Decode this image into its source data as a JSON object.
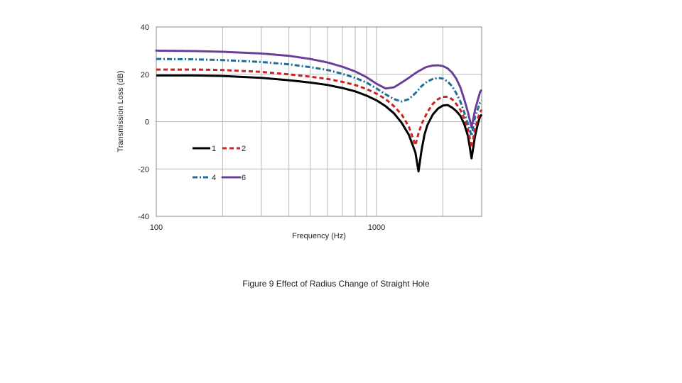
{
  "caption": "Figure 9 Effect of Radius Change of Straight Hole",
  "chart_data": {
    "type": "line",
    "xlabel": "Frequency (Hz)",
    "ylabel": "Transmission Loss (dB)",
    "xscale": "log",
    "xlim": [
      100,
      3000
    ],
    "ylim": [
      -40,
      40
    ],
    "xticks": [
      100,
      1000
    ],
    "xtick_labels": [
      "100",
      "1000"
    ],
    "yticks": [
      -40,
      -20,
      0,
      20,
      40
    ],
    "ytick_labels": [
      "-40",
      "-20",
      "0",
      "20",
      "40"
    ],
    "grid": true,
    "legend_position": "lower-left",
    "x": [
      100,
      150,
      200,
      300,
      400,
      500,
      600,
      700,
      800,
      900,
      1000,
      1100,
      1200,
      1300,
      1400,
      1500,
      1550,
      1600,
      1650,
      1700,
      1800,
      1900,
      2000,
      2100,
      2200,
      2300,
      2400,
      2500,
      2600,
      2700,
      2800,
      2900,
      2950,
      3000
    ],
    "series": [
      {
        "name": "1",
        "color": "#000000",
        "dash": "solid",
        "values": [
          19.5,
          19.5,
          19.3,
          18.5,
          17.5,
          16.5,
          15.5,
          14.2,
          12.8,
          11.0,
          9.0,
          6.5,
          3.5,
          -0.5,
          -5.5,
          -13.0,
          -21.0,
          -12.0,
          -5.5,
          -1.5,
          3.0,
          5.5,
          6.8,
          7.0,
          6.0,
          4.5,
          2.5,
          -1.0,
          -6.0,
          -15.5,
          -6.0,
          0.0,
          2.0,
          3.0
        ]
      },
      {
        "name": "2",
        "color": "#cc2222",
        "dash": "dash",
        "values": [
          22.0,
          22.0,
          21.8,
          21.0,
          20.0,
          19.0,
          18.0,
          16.8,
          15.5,
          13.8,
          11.8,
          9.5,
          6.5,
          3.0,
          -2.0,
          -10.0,
          -5.0,
          -1.0,
          1.5,
          4.0,
          7.5,
          9.5,
          10.5,
          10.5,
          9.5,
          7.5,
          5.0,
          1.5,
          -3.0,
          -11.0,
          -3.0,
          2.0,
          4.0,
          5.0
        ]
      },
      {
        "name": "4",
        "color": "#1f6e9a",
        "dash": "dashdot",
        "values": [
          26.5,
          26.3,
          26.0,
          25.2,
          24.2,
          23.0,
          21.8,
          20.2,
          18.5,
          16.5,
          14.0,
          11.5,
          9.5,
          8.5,
          9.5,
          12.0,
          13.5,
          15.0,
          16.0,
          17.0,
          18.0,
          18.5,
          18.2,
          17.0,
          15.0,
          12.0,
          8.5,
          4.0,
          -1.0,
          -6.0,
          2.0,
          6.0,
          8.0,
          9.0
        ]
      },
      {
        "name": "6",
        "color": "#6a3d9a",
        "dash": "dot",
        "values": [
          30.0,
          29.8,
          29.5,
          28.8,
          27.8,
          26.5,
          25.0,
          23.2,
          21.2,
          18.8,
          16.0,
          14.0,
          14.5,
          16.5,
          18.5,
          20.5,
          21.3,
          22.0,
          22.7,
          23.2,
          23.7,
          23.8,
          23.5,
          22.5,
          20.8,
          18.2,
          14.5,
          9.5,
          4.0,
          -2.5,
          5.0,
          10.0,
          12.5,
          13.5
        ]
      }
    ]
  }
}
